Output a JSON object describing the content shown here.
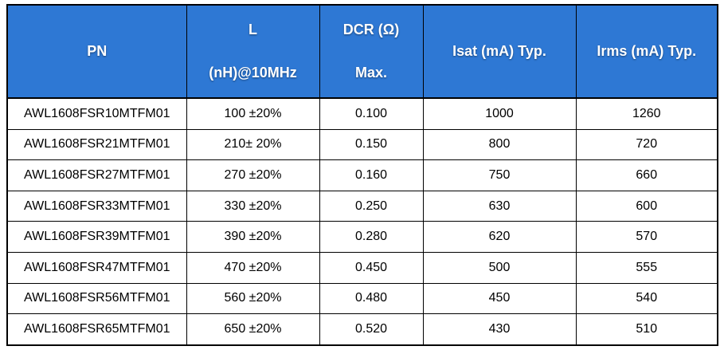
{
  "table": {
    "colors": {
      "header_bg": "#2E78D4",
      "header_text": "#FFFFFF",
      "border": "#000000",
      "body_text": "#000000",
      "body_bg": "#FFFFFF"
    },
    "columns": {
      "pn": {
        "label": "PN"
      },
      "l": {
        "line1": "L",
        "line2": "(nH)@10MHz"
      },
      "dcr": {
        "line1": "DCR (Ω)",
        "line2": "Max."
      },
      "isat": {
        "label": "Isat (mA) Typ."
      },
      "irms": {
        "label": "Irms (mA) Typ."
      }
    },
    "rows": [
      {
        "pn": "AWL1608FSR10MTFM01",
        "l": "100 ±20%",
        "dcr": "0.100",
        "isat": "1000",
        "irms": "1260"
      },
      {
        "pn": "AWL1608FSR21MTFM01",
        "l": "210± 20%",
        "dcr": "0.150",
        "isat": "800",
        "irms": "720"
      },
      {
        "pn": "AWL1608FSR27MTFM01",
        "l": "270 ±20%",
        "dcr": "0.160",
        "isat": "750",
        "irms": "660"
      },
      {
        "pn": "AWL1608FSR33MTFM01",
        "l": "330 ±20%",
        "dcr": "0.250",
        "isat": "630",
        "irms": "600"
      },
      {
        "pn": "AWL1608FSR39MTFM01",
        "l": "390 ±20%",
        "dcr": "0.280",
        "isat": "620",
        "irms": "570"
      },
      {
        "pn": "AWL1608FSR47MTFM01",
        "l": "470 ±20%",
        "dcr": "0.450",
        "isat": "500",
        "irms": "555"
      },
      {
        "pn": "AWL1608FSR56MTFM01",
        "l": "560 ±20%",
        "dcr": "0.480",
        "isat": "450",
        "irms": "540"
      },
      {
        "pn": "AWL1608FSR65MTFM01",
        "l": "650 ±20%",
        "dcr": "0.520",
        "isat": "430",
        "irms": "510"
      }
    ]
  }
}
